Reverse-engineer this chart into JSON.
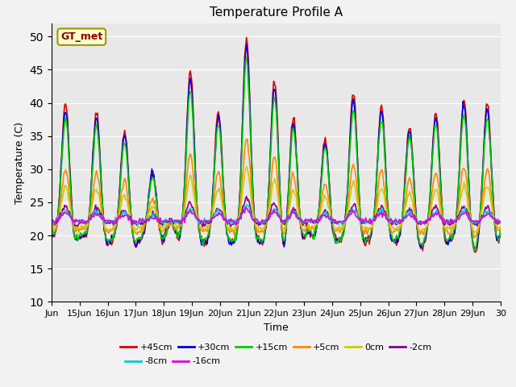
{
  "title": "Temperature Profile A",
  "xlabel": "Time",
  "ylabel": "Temperature (C)",
  "ylim": [
    10,
    52
  ],
  "xlim": [
    0,
    480
  ],
  "fig_bg": "#f2f2f2",
  "plot_bg": "#e8e8e8",
  "annotation_text": "GT_met",
  "annotation_bg": "#ffffcc",
  "annotation_edge": "#999900",
  "annotation_color": "#8B0000",
  "x_tick_labels": [
    "Jun",
    "15Jun",
    "16Jun",
    "17Jun",
    "18Jun",
    "19Jun",
    "20Jun",
    "21Jun",
    "22Jun",
    "23Jun",
    "24Jun",
    "25Jun",
    "26Jun",
    "27Jun",
    "28Jun",
    "29Jun",
    "30"
  ],
  "series": [
    {
      "label": "+45cm",
      "color": "#dd0000",
      "lw": 1.2
    },
    {
      "label": "+30cm",
      "color": "#0000dd",
      "lw": 1.2
    },
    {
      "label": "+15cm",
      "color": "#00cc00",
      "lw": 1.2
    },
    {
      "label": "+5cm",
      "color": "#ff8800",
      "lw": 1.2
    },
    {
      "label": "0cm",
      "color": "#cccc00",
      "lw": 1.2
    },
    {
      "label": "-2cm",
      "color": "#880088",
      "lw": 1.2
    },
    {
      "label": "-8cm",
      "color": "#00cccc",
      "lw": 1.2
    },
    {
      "label": "-16cm",
      "color": "#dd00dd",
      "lw": 1.2
    }
  ],
  "legend_ncol1": 6,
  "legend_ncol2": 2
}
